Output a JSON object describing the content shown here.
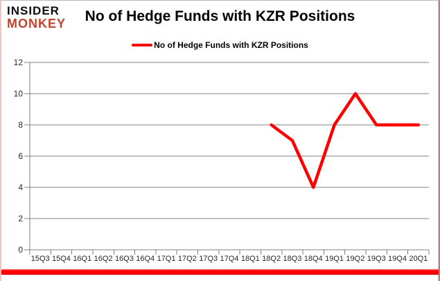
{
  "logo": {
    "line1": "INSIDER",
    "line2": "MONKEY"
  },
  "colors": {
    "accent_red": "#ff0000",
    "logo_red": "#c2422e",
    "grid": "#808080",
    "axis_text": "#262626",
    "border_pink": "#f5c2c2",
    "border_gray": "#8f8f8f"
  },
  "chart_data": {
    "type": "line",
    "title": "No of Hedge Funds with KZR Positions",
    "xlabel": "",
    "ylabel": "",
    "categories": [
      "15Q3",
      "15Q4",
      "16Q1",
      "16Q2",
      "16Q3",
      "16Q4",
      "17Q1",
      "17Q2",
      "17Q3",
      "17Q4",
      "18Q1",
      "18Q2",
      "18Q3",
      "18Q4",
      "19Q1",
      "19Q2",
      "19Q3",
      "19Q4",
      "20Q1"
    ],
    "series": [
      {
        "name": "No of Hedge Funds with KZR Positions",
        "color": "#ff0000",
        "values": [
          null,
          null,
          null,
          null,
          null,
          null,
          null,
          null,
          null,
          null,
          null,
          8,
          7,
          4,
          8,
          10,
          8,
          8,
          8
        ]
      }
    ],
    "ylim": [
      0,
      12
    ],
    "yticks": [
      0,
      2,
      4,
      6,
      8,
      10,
      12
    ],
    "grid": true,
    "legend_position": "top-center"
  }
}
